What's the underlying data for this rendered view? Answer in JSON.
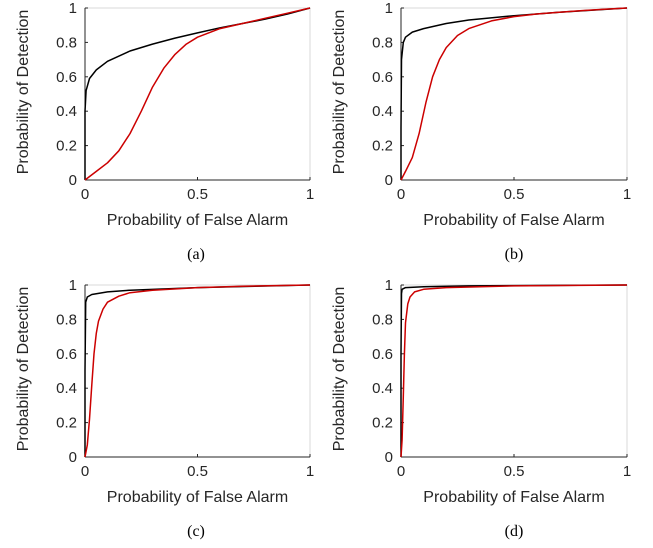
{
  "chart_data": [
    {
      "type": "line",
      "caption": "(a)",
      "xlabel": "Probability of False Alarm",
      "ylabel": "Probability of Detection",
      "xlim": [
        0,
        1
      ],
      "ylim": [
        0,
        1
      ],
      "xticks": [
        0,
        0.5,
        1
      ],
      "yticks": [
        0,
        0.2,
        0.4,
        0.6,
        0.8,
        1
      ],
      "xtick_labels": [
        "0",
        "0.5",
        "1"
      ],
      "ytick_labels": [
        "0",
        "0.2",
        "0.4",
        "0.6",
        "0.8",
        "1"
      ],
      "grid": false,
      "legend": "none",
      "series": [
        {
          "color": "#000000",
          "x": [
            0,
            0,
            0.005,
            0.02,
            0.05,
            0.1,
            0.2,
            0.3,
            0.4,
            0.5,
            0.6,
            0.7,
            0.8,
            0.9,
            1
          ],
          "y": [
            0,
            0.4,
            0.52,
            0.59,
            0.64,
            0.69,
            0.75,
            0.79,
            0.825,
            0.855,
            0.885,
            0.91,
            0.935,
            0.965,
            1
          ]
        },
        {
          "color": "#cc0000",
          "x": [
            0,
            0.05,
            0.1,
            0.15,
            0.2,
            0.25,
            0.3,
            0.35,
            0.4,
            0.45,
            0.5,
            0.6,
            0.7,
            0.8,
            0.9,
            1
          ],
          "y": [
            0,
            0.05,
            0.1,
            0.17,
            0.27,
            0.4,
            0.54,
            0.65,
            0.73,
            0.79,
            0.83,
            0.88,
            0.91,
            0.94,
            0.97,
            1
          ]
        }
      ]
    },
    {
      "type": "line",
      "caption": "(b)",
      "xlabel": "Probability of False Alarm",
      "ylabel": "Probability of Detection",
      "xlim": [
        0,
        1
      ],
      "ylim": [
        0,
        1
      ],
      "xticks": [
        0,
        0.5,
        1
      ],
      "yticks": [
        0,
        0.2,
        0.4,
        0.6,
        0.8,
        1
      ],
      "xtick_labels": [
        "0",
        "0.5",
        "1"
      ],
      "ytick_labels": [
        "0",
        "0.2",
        "0.4",
        "0.6",
        "0.8",
        "1"
      ],
      "grid": false,
      "legend": "none",
      "series": [
        {
          "color": "#000000",
          "x": [
            0,
            0,
            0.002,
            0.01,
            0.02,
            0.05,
            0.1,
            0.2,
            0.3,
            0.5,
            0.7,
            1
          ],
          "y": [
            0,
            0.3,
            0.7,
            0.8,
            0.83,
            0.86,
            0.88,
            0.91,
            0.93,
            0.955,
            0.975,
            1
          ]
        },
        {
          "color": "#cc0000",
          "x": [
            0,
            0.02,
            0.05,
            0.08,
            0.11,
            0.14,
            0.17,
            0.2,
            0.25,
            0.3,
            0.4,
            0.5,
            0.6,
            0.7,
            0.8,
            0.9,
            1
          ],
          "y": [
            0,
            0.05,
            0.13,
            0.27,
            0.45,
            0.6,
            0.7,
            0.77,
            0.84,
            0.88,
            0.925,
            0.95,
            0.965,
            0.975,
            0.985,
            0.993,
            1
          ]
        }
      ]
    },
    {
      "type": "line",
      "caption": "(c)",
      "xlabel": "Probability of False Alarm",
      "ylabel": "Probability of Detection",
      "xlim": [
        0,
        1
      ],
      "ylim": [
        0,
        1
      ],
      "xticks": [
        0,
        0.5,
        1
      ],
      "yticks": [
        0,
        0.2,
        0.4,
        0.6,
        0.8,
        1
      ],
      "xtick_labels": [
        "0",
        "0.5",
        "1"
      ],
      "ytick_labels": [
        "0",
        "0.2",
        "0.4",
        "0.6",
        "0.8",
        "1"
      ],
      "grid": false,
      "legend": "none",
      "series": [
        {
          "color": "#000000",
          "x": [
            0,
            0,
            0.003,
            0.01,
            0.03,
            0.1,
            0.2,
            0.5,
            1
          ],
          "y": [
            0,
            0.5,
            0.9,
            0.93,
            0.945,
            0.96,
            0.97,
            0.985,
            1
          ]
        },
        {
          "color": "#cc0000",
          "x": [
            0,
            0.01,
            0.02,
            0.03,
            0.04,
            0.05,
            0.06,
            0.08,
            0.1,
            0.15,
            0.2,
            0.3,
            0.5,
            0.7,
            1
          ],
          "y": [
            0,
            0.07,
            0.22,
            0.42,
            0.6,
            0.72,
            0.79,
            0.86,
            0.9,
            0.935,
            0.955,
            0.97,
            0.985,
            0.993,
            1
          ]
        }
      ]
    },
    {
      "type": "line",
      "caption": "(d)",
      "xlabel": "Probability of False Alarm",
      "ylabel": "Probability of Detection",
      "xlim": [
        0,
        1
      ],
      "ylim": [
        0,
        1
      ],
      "xticks": [
        0,
        0.5,
        1
      ],
      "yticks": [
        0,
        0.2,
        0.4,
        0.6,
        0.8,
        1
      ],
      "xtick_labels": [
        "0",
        "0.5",
        "1"
      ],
      "ytick_labels": [
        "0",
        "0.2",
        "0.4",
        "0.6",
        "0.8",
        "1"
      ],
      "grid": false,
      "legend": "none",
      "series": [
        {
          "color": "#000000",
          "x": [
            0,
            0,
            0.002,
            0.005,
            0.02,
            0.1,
            0.3,
            1
          ],
          "y": [
            0,
            0.6,
            0.95,
            0.975,
            0.985,
            0.99,
            0.995,
            1
          ]
        },
        {
          "color": "#cc0000",
          "x": [
            0,
            0.005,
            0.01,
            0.015,
            0.02,
            0.03,
            0.04,
            0.06,
            0.1,
            0.2,
            0.5,
            1
          ],
          "y": [
            0,
            0.1,
            0.35,
            0.6,
            0.78,
            0.89,
            0.93,
            0.96,
            0.975,
            0.985,
            0.995,
            1
          ]
        }
      ]
    }
  ]
}
